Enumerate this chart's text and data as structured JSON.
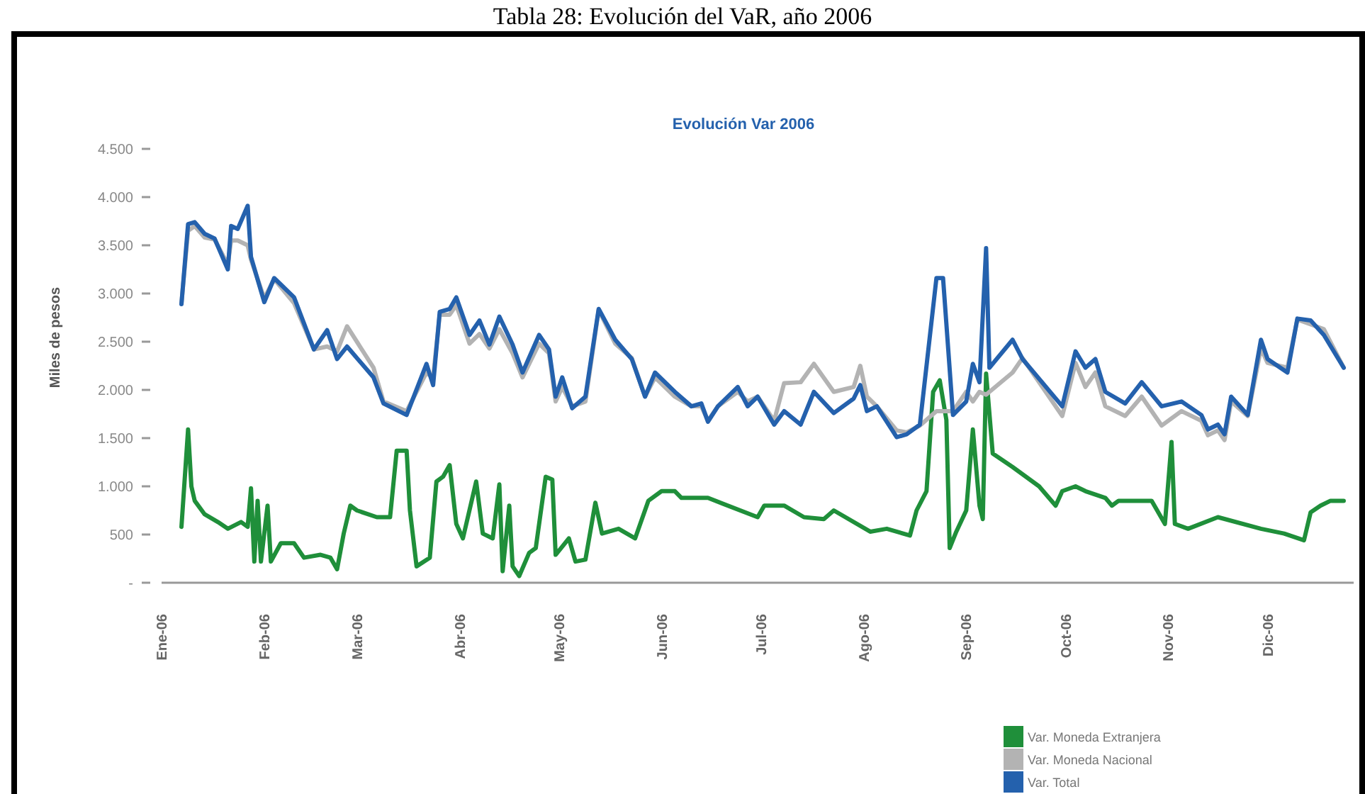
{
  "chart_data": {
    "type": "line",
    "title": "Evolución Var 2006",
    "ylabel": "Miles de pesos",
    "annotations": [
      "Tabla 28: Evolución del VaR, año 2006"
    ],
    "legend": "bottom right",
    "xlim": [
      "2006-01-01",
      "2006-12-27"
    ],
    "ylim": [
      0,
      4500
    ],
    "xticks": [
      {
        "value": "2006-01-01",
        "label": "Ene-06"
      },
      {
        "value": "2006-02-01",
        "label": "Feb-06"
      },
      {
        "value": "2006-03-01",
        "label": "Mar-06"
      },
      {
        "value": "2006-04-01",
        "label": "Abr-06"
      },
      {
        "value": "2006-05-01",
        "label": "May-06"
      },
      {
        "value": "2006-06-01",
        "label": "Jun-06"
      },
      {
        "value": "2006-07-01",
        "label": "Jul-06"
      },
      {
        "value": "2006-08-01",
        "label": "Ago-06"
      },
      {
        "value": "2006-09-01",
        "label": "Sep-06"
      },
      {
        "value": "2006-10-01",
        "label": "Oct-06"
      },
      {
        "value": "2006-11-01",
        "label": "Nov-06"
      },
      {
        "value": "2006-12-01",
        "label": "Dic-06"
      }
    ],
    "yticks": [
      {
        "value": 0,
        "label": "-"
      },
      500,
      {
        "value": 1000,
        "label": "1.000"
      },
      {
        "value": 1500,
        "label": "1.500"
      },
      {
        "value": 2000,
        "label": "2.000"
      },
      {
        "value": 2500,
        "label": "2.500"
      },
      {
        "value": 3000,
        "label": "3.000"
      },
      {
        "value": 3500,
        "label": "3.500"
      },
      {
        "value": 4000,
        "label": "4.000"
      },
      {
        "value": 4500,
        "label": "4.500"
      }
    ],
    "series": [
      {
        "name": "Var. Moneda Extranjera",
        "color": "#1f8f3a",
        "x": [
          "2006-01-07",
          "2006-01-09",
          "2006-01-10",
          "2006-01-11",
          "2006-01-14",
          "2006-01-18",
          "2006-01-21",
          "2006-01-25",
          "2006-01-27",
          "2006-01-28",
          "2006-01-29",
          "2006-01-30",
          "2006-01-31",
          "2006-02-02",
          "2006-02-03",
          "2006-02-06",
          "2006-02-10",
          "2006-02-13",
          "2006-02-18",
          "2006-02-21",
          "2006-02-23",
          "2006-02-25",
          "2006-02-27",
          "2006-03-01",
          "2006-03-07",
          "2006-03-11",
          "2006-03-13",
          "2006-03-16",
          "2006-03-17",
          "2006-03-19",
          "2006-03-23",
          "2006-03-25",
          "2006-03-27",
          "2006-03-29",
          "2006-03-31",
          "2006-04-02",
          "2006-04-06",
          "2006-04-08",
          "2006-04-11",
          "2006-04-13",
          "2006-04-14",
          "2006-04-16",
          "2006-04-17",
          "2006-04-19",
          "2006-04-22",
          "2006-04-24",
          "2006-04-27",
          "2006-04-29",
          "2006-04-30",
          "2006-05-04",
          "2006-05-06",
          "2006-05-09",
          "2006-05-12",
          "2006-05-14",
          "2006-05-19",
          "2006-05-24",
          "2006-05-28",
          "2006-06-01",
          "2006-06-05",
          "2006-06-07",
          "2006-06-15",
          "2006-06-30",
          "2006-07-02",
          "2006-07-08",
          "2006-07-14",
          "2006-07-20",
          "2006-07-23",
          "2006-08-03",
          "2006-08-08",
          "2006-08-15",
          "2006-08-17",
          "2006-08-20",
          "2006-08-22",
          "2006-08-24",
          "2006-08-26",
          "2006-08-27",
          "2006-08-29",
          "2006-09-01",
          "2006-09-03",
          "2006-09-05",
          "2006-09-06",
          "2006-09-07",
          "2006-09-09",
          "2006-09-15",
          "2006-09-23",
          "2006-09-28",
          "2006-09-30",
          "2006-10-04",
          "2006-10-07",
          "2006-10-13",
          "2006-10-15",
          "2006-10-17",
          "2006-10-23",
          "2006-10-27",
          "2006-10-31",
          "2006-11-02",
          "2006-11-03",
          "2006-11-07",
          "2006-11-16",
          "2006-11-29",
          "2006-12-06",
          "2006-12-12",
          "2006-12-14",
          "2006-12-17",
          "2006-12-20",
          "2006-12-24"
        ],
        "values": [
          580,
          1590,
          1000,
          850,
          710,
          630,
          560,
          630,
          580,
          980,
          220,
          850,
          220,
          800,
          220,
          410,
          410,
          260,
          290,
          260,
          140,
          510,
          800,
          750,
          680,
          680,
          1370,
          1370,
          750,
          170,
          260,
          1050,
          1100,
          1220,
          610,
          460,
          1050,
          510,
          460,
          1020,
          120,
          800,
          170,
          70,
          310,
          360,
          1100,
          1070,
          290,
          460,
          220,
          240,
          830,
          510,
          560,
          460,
          850,
          950,
          950,
          880,
          880,
          680,
          800,
          800,
          680,
          660,
          750,
          530,
          560,
          490,
          750,
          950,
          1980,
          2100,
          1690,
          360,
          530,
          750,
          1590,
          800,
          660,
          2170,
          1340,
          1200,
          1000,
          800,
          950,
          1000,
          950,
          880,
          800,
          850,
          850,
          850,
          610,
          1460,
          610,
          560,
          680,
          560,
          510,
          440,
          730,
          800,
          850,
          850
        ]
      },
      {
        "name": "Var. Moneda Nacional",
        "color": "#b3b3b3",
        "x": [
          "2006-01-07",
          "2006-01-09",
          "2006-01-11",
          "2006-01-14",
          "2006-01-17",
          "2006-01-21",
          "2006-01-22",
          "2006-01-24",
          "2006-01-27",
          "2006-01-28",
          "2006-02-01",
          "2006-02-04",
          "2006-02-10",
          "2006-02-16",
          "2006-02-20",
          "2006-02-23",
          "2006-02-26",
          "2006-03-06",
          "2006-03-09",
          "2006-03-16",
          "2006-03-22",
          "2006-03-24",
          "2006-03-26",
          "2006-03-29",
          "2006-03-31",
          "2006-04-04",
          "2006-04-07",
          "2006-04-10",
          "2006-04-13",
          "2006-04-17",
          "2006-04-20",
          "2006-04-25",
          "2006-04-28",
          "2006-04-30",
          "2006-05-02",
          "2006-05-05",
          "2006-05-09",
          "2006-05-13",
          "2006-05-18",
          "2006-05-23",
          "2006-05-27",
          "2006-05-30",
          "2006-06-05",
          "2006-06-10",
          "2006-06-13",
          "2006-06-15",
          "2006-06-18",
          "2006-06-24",
          "2006-06-27",
          "2006-06-30",
          "2006-07-05",
          "2006-07-08",
          "2006-07-13",
          "2006-07-17",
          "2006-07-23",
          "2006-07-29",
          "2006-07-31",
          "2006-08-02",
          "2006-08-05",
          "2006-08-11",
          "2006-08-14",
          "2006-08-18",
          "2006-08-23",
          "2006-08-25",
          "2006-08-28",
          "2006-09-01",
          "2006-09-03",
          "2006-09-05",
          "2006-09-07",
          "2006-09-08",
          "2006-09-15",
          "2006-09-18",
          "2006-09-30",
          "2006-10-04",
          "2006-10-07",
          "2006-10-10",
          "2006-10-13",
          "2006-10-19",
          "2006-10-24",
          "2006-10-30",
          "2006-11-05",
          "2006-11-11",
          "2006-11-13",
          "2006-11-16",
          "2006-11-18",
          "2006-11-20",
          "2006-11-25",
          "2006-11-29",
          "2006-12-01",
          "2006-12-07",
          "2006-12-10",
          "2006-12-14",
          "2006-12-18",
          "2006-12-24"
        ],
        "values": [
          2900,
          3650,
          3700,
          3580,
          3560,
          3300,
          3550,
          3550,
          3500,
          3350,
          2950,
          3150,
          2900,
          2420,
          2450,
          2400,
          2660,
          2230,
          1880,
          1780,
          2180,
          2130,
          2780,
          2780,
          2880,
          2480,
          2580,
          2430,
          2630,
          2380,
          2130,
          2480,
          2380,
          1880,
          2030,
          1830,
          1880,
          2830,
          2480,
          2330,
          1930,
          2130,
          1930,
          1830,
          1830,
          1680,
          1830,
          1980,
          1880,
          1930,
          1680,
          2070,
          2080,
          2270,
          1980,
          2030,
          2250,
          1930,
          1830,
          1580,
          1560,
          1630,
          1780,
          1780,
          1780,
          1980,
          1880,
          1980,
          1950,
          1980,
          2180,
          2330,
          1730,
          2280,
          2030,
          2180,
          1830,
          1730,
          1930,
          1630,
          1780,
          1680,
          1530,
          1580,
          1480,
          1880,
          1730,
          2430,
          2280,
          2230,
          2730,
          2680,
          2630,
          2230
        ]
      },
      {
        "name": "Var. Total",
        "color": "#2461ad",
        "x": [
          "2006-01-07",
          "2006-01-09",
          "2006-01-11",
          "2006-01-14",
          "2006-01-17",
          "2006-01-21",
          "2006-01-22",
          "2006-01-24",
          "2006-01-27",
          "2006-01-28",
          "2006-02-01",
          "2006-02-04",
          "2006-02-10",
          "2006-02-16",
          "2006-02-20",
          "2006-02-23",
          "2006-02-26",
          "2006-03-06",
          "2006-03-09",
          "2006-03-16",
          "2006-03-22",
          "2006-03-24",
          "2006-03-26",
          "2006-03-29",
          "2006-03-31",
          "2006-04-04",
          "2006-04-07",
          "2006-04-10",
          "2006-04-13",
          "2006-04-17",
          "2006-04-20",
          "2006-04-25",
          "2006-04-28",
          "2006-04-30",
          "2006-05-02",
          "2006-05-05",
          "2006-05-09",
          "2006-05-13",
          "2006-05-18",
          "2006-05-23",
          "2006-05-27",
          "2006-05-30",
          "2006-06-05",
          "2006-06-10",
          "2006-06-13",
          "2006-06-15",
          "2006-06-18",
          "2006-06-24",
          "2006-06-27",
          "2006-06-30",
          "2006-07-05",
          "2006-07-08",
          "2006-07-13",
          "2006-07-17",
          "2006-07-23",
          "2006-07-29",
          "2006-07-31",
          "2006-08-02",
          "2006-08-05",
          "2006-08-11",
          "2006-08-14",
          "2006-08-18",
          "2006-08-23",
          "2006-08-25",
          "2006-08-28",
          "2006-09-01",
          "2006-09-03",
          "2006-09-05",
          "2006-09-07",
          "2006-09-08",
          "2006-09-15",
          "2006-09-18",
          "2006-09-30",
          "2006-10-04",
          "2006-10-07",
          "2006-10-10",
          "2006-10-13",
          "2006-10-19",
          "2006-10-24",
          "2006-10-30",
          "2006-11-05",
          "2006-11-11",
          "2006-11-13",
          "2006-11-16",
          "2006-11-18",
          "2006-11-20",
          "2006-11-25",
          "2006-11-29",
          "2006-12-01",
          "2006-12-07",
          "2006-12-10",
          "2006-12-14",
          "2006-12-18",
          "2006-12-24"
        ],
        "values": [
          2890,
          3720,
          3740,
          3620,
          3570,
          3250,
          3700,
          3670,
          3910,
          3380,
          2910,
          3160,
          2960,
          2420,
          2620,
          2320,
          2450,
          2130,
          1860,
          1740,
          2270,
          2050,
          2810,
          2840,
          2960,
          2570,
          2720,
          2470,
          2760,
          2470,
          2180,
          2570,
          2420,
          1930,
          2130,
          1810,
          1930,
          2840,
          2520,
          2320,
          1930,
          2180,
          1980,
          1830,
          1860,
          1670,
          1830,
          2030,
          1830,
          1930,
          1640,
          1780,
          1640,
          1980,
          1760,
          1910,
          2050,
          1780,
          1830,
          1510,
          1540,
          1640,
          3160,
          3160,
          1740,
          1880,
          2270,
          2080,
          3470,
          2230,
          2520,
          2320,
          1830,
          2400,
          2230,
          2320,
          1980,
          1860,
          2080,
          1830,
          1880,
          1740,
          1590,
          1640,
          1540,
          1930,
          1740,
          2520,
          2320,
          2180,
          2740,
          2720,
          2570,
          2230
        ]
      }
    ]
  }
}
